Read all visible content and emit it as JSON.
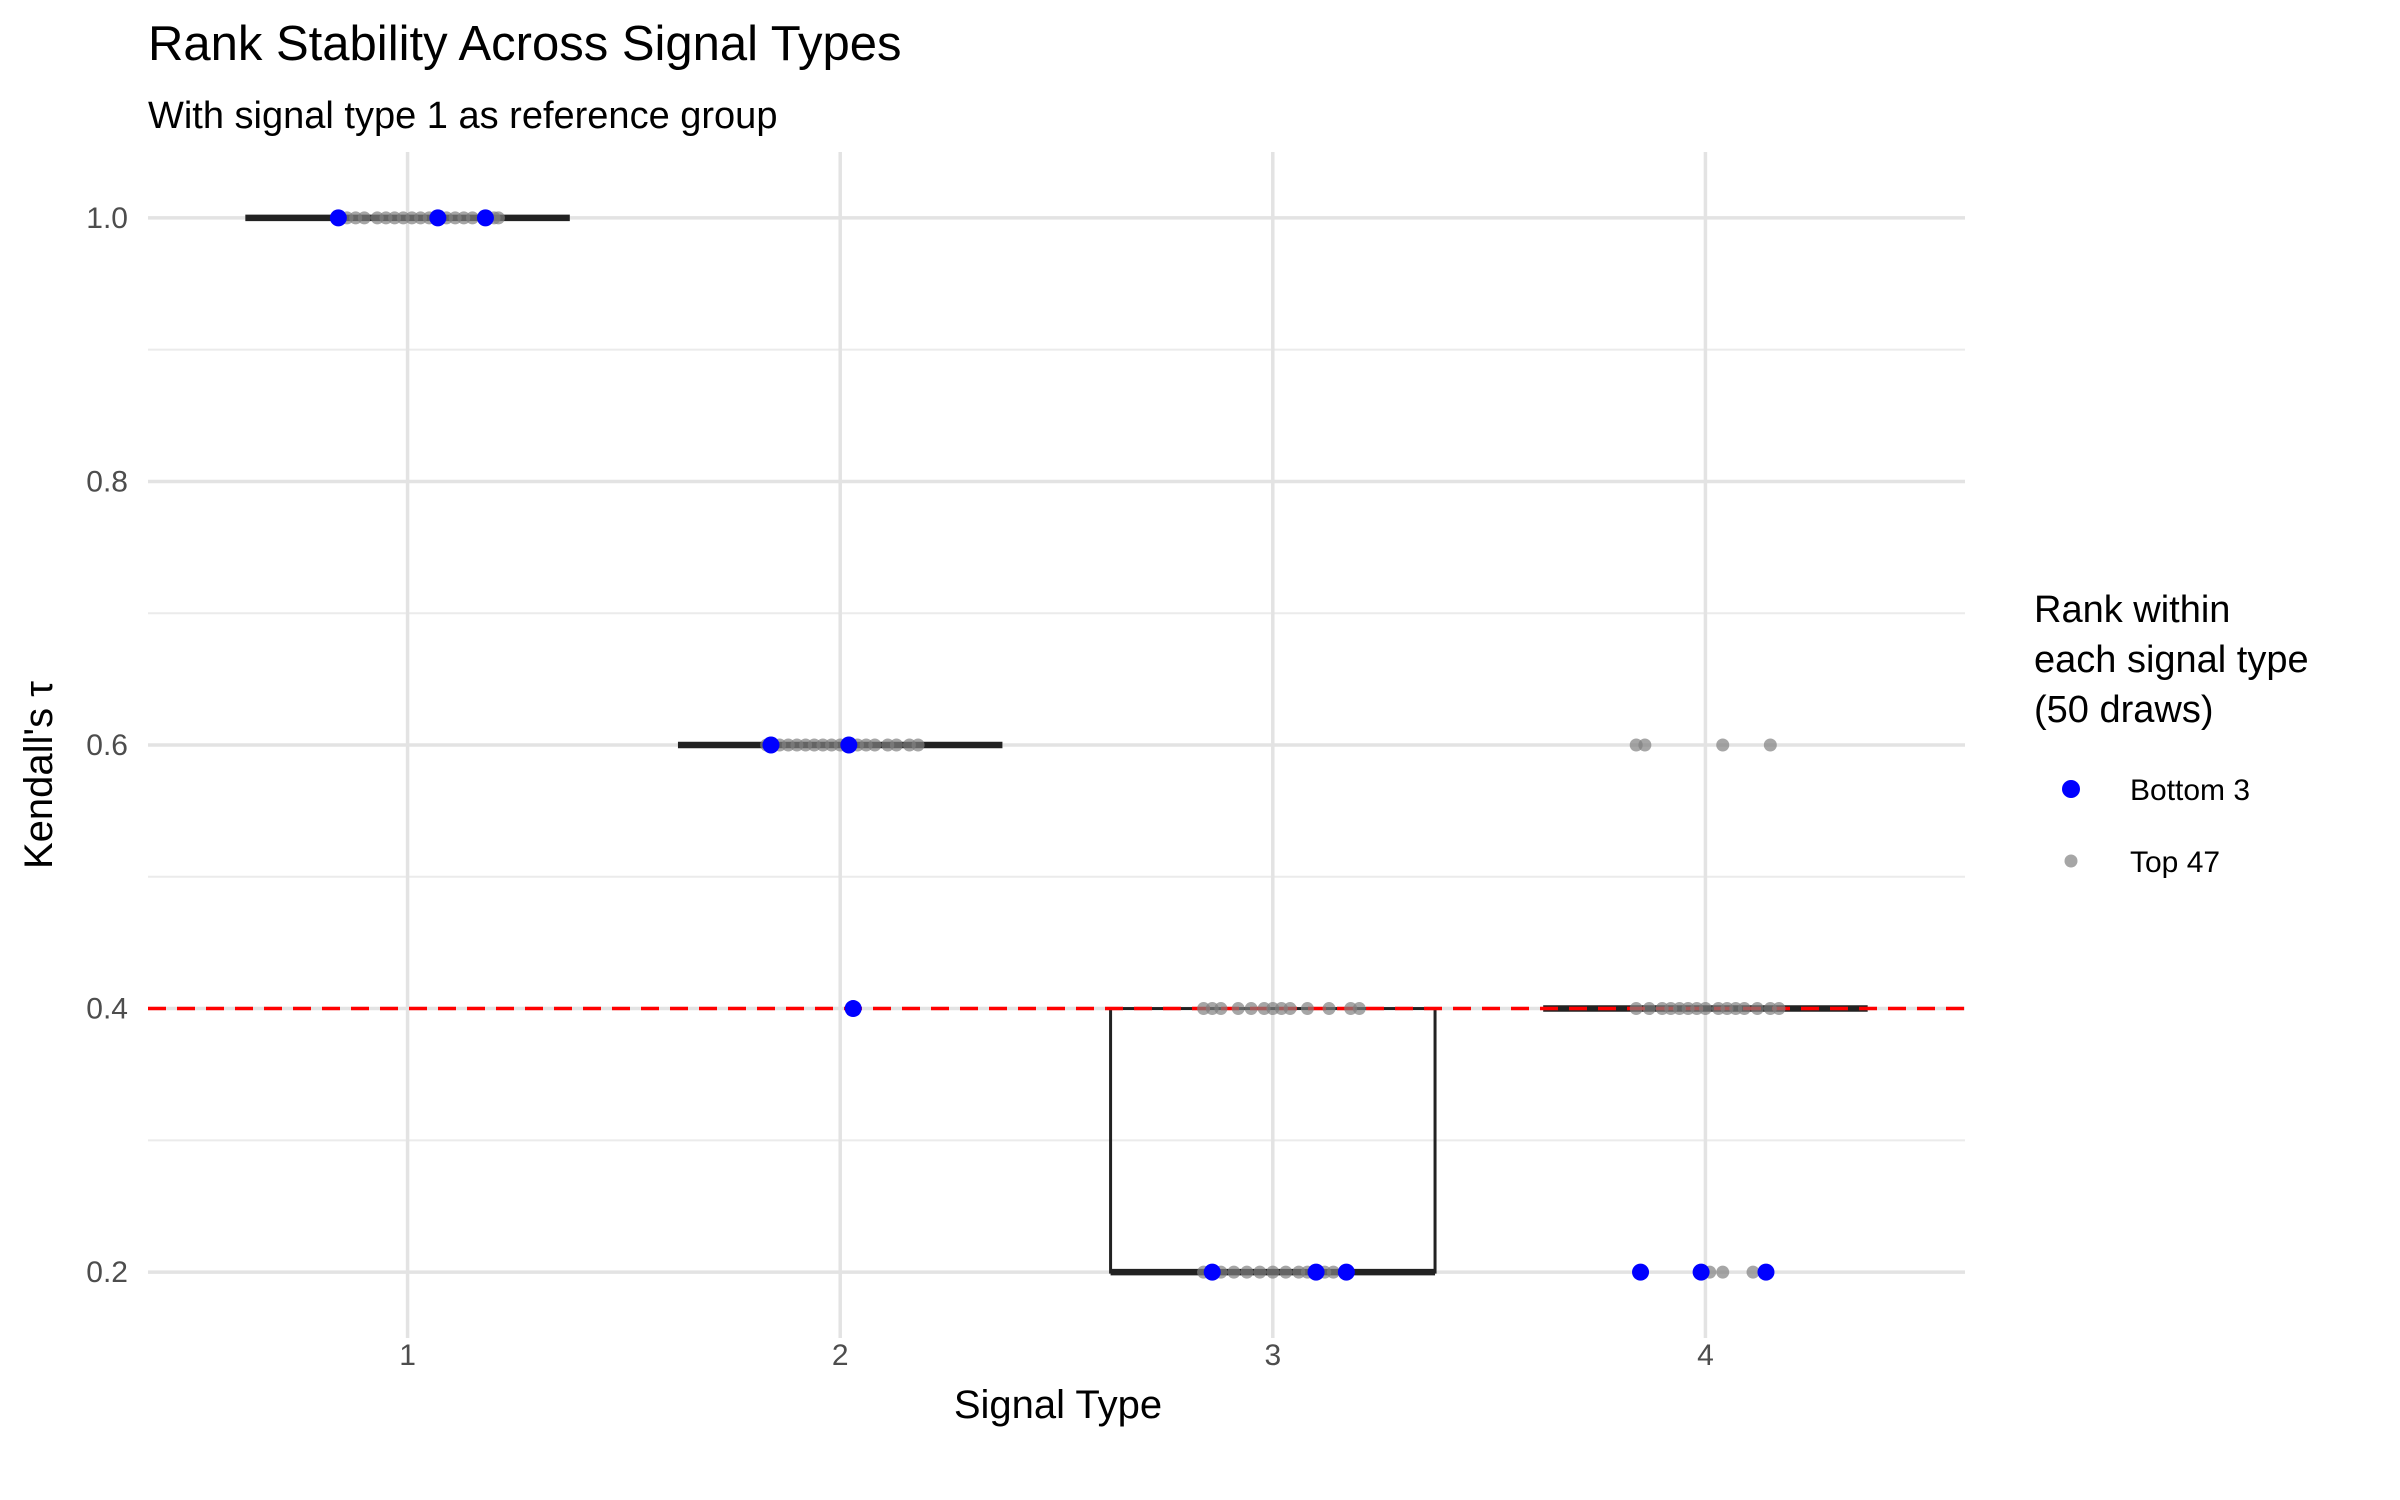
{
  "chart_data": {
    "type": "box",
    "title": "Rank Stability Across Signal Types",
    "subtitle": "With signal type 1 as reference group",
    "xlabel": "Signal Type",
    "ylabel": "Kendall's τ",
    "categories": [
      "1",
      "2",
      "3",
      "4"
    ],
    "y_ticks": [
      "0.2",
      "0.4",
      "0.6",
      "0.8",
      "1.0"
    ],
    "ylim": [
      0.15,
      1.05
    ],
    "grid": true,
    "reference_line": {
      "y": 0.4,
      "color": "#ff0000",
      "style": "dashed"
    },
    "boxes": [
      {
        "category": "1",
        "q1": 1.0,
        "median": 1.0,
        "q3": 1.0
      },
      {
        "category": "2",
        "q1": 0.6,
        "median": 0.6,
        "q3": 0.6
      },
      {
        "category": "3",
        "q1": 0.2,
        "median": 0.2,
        "q3": 0.4
      },
      {
        "category": "4",
        "q1": 0.4,
        "median": 0.4,
        "q3": 0.4
      }
    ],
    "series": [
      {
        "name": "Bottom 3",
        "color": "#0000ff",
        "points": [
          {
            "x": 0.84,
            "y": 1.0
          },
          {
            "x": 1.07,
            "y": 1.0
          },
          {
            "x": 1.18,
            "y": 1.0
          },
          {
            "x": 1.84,
            "y": 0.6
          },
          {
            "x": 2.02,
            "y": 0.6
          },
          {
            "x": 2.03,
            "y": 0.4
          },
          {
            "x": 2.86,
            "y": 0.2
          },
          {
            "x": 3.1,
            "y": 0.2
          },
          {
            "x": 3.17,
            "y": 0.2
          },
          {
            "x": 3.85,
            "y": 0.2
          },
          {
            "x": 3.99,
            "y": 0.2
          },
          {
            "x": 4.14,
            "y": 0.2
          }
        ]
      },
      {
        "name": "Top 47",
        "color": "#808080",
        "opacity": 0.7,
        "points": [
          {
            "x": 0.84,
            "y": 1.0
          },
          {
            "x": 0.86,
            "y": 1.0
          },
          {
            "x": 0.88,
            "y": 1.0
          },
          {
            "x": 0.9,
            "y": 1.0
          },
          {
            "x": 0.93,
            "y": 1.0
          },
          {
            "x": 0.95,
            "y": 1.0
          },
          {
            "x": 0.97,
            "y": 1.0
          },
          {
            "x": 0.99,
            "y": 1.0
          },
          {
            "x": 1.01,
            "y": 1.0
          },
          {
            "x": 1.03,
            "y": 1.0
          },
          {
            "x": 1.05,
            "y": 1.0
          },
          {
            "x": 1.09,
            "y": 1.0
          },
          {
            "x": 1.11,
            "y": 1.0
          },
          {
            "x": 1.13,
            "y": 1.0
          },
          {
            "x": 1.15,
            "y": 1.0
          },
          {
            "x": 1.2,
            "y": 1.0
          },
          {
            "x": 1.21,
            "y": 1.0
          },
          {
            "x": 1.83,
            "y": 0.6
          },
          {
            "x": 1.86,
            "y": 0.6
          },
          {
            "x": 1.88,
            "y": 0.6
          },
          {
            "x": 1.9,
            "y": 0.6
          },
          {
            "x": 1.92,
            "y": 0.6
          },
          {
            "x": 1.94,
            "y": 0.6
          },
          {
            "x": 1.96,
            "y": 0.6
          },
          {
            "x": 1.98,
            "y": 0.6
          },
          {
            "x": 2.0,
            "y": 0.6
          },
          {
            "x": 2.04,
            "y": 0.6
          },
          {
            "x": 2.06,
            "y": 0.6
          },
          {
            "x": 2.08,
            "y": 0.6
          },
          {
            "x": 2.11,
            "y": 0.6
          },
          {
            "x": 2.13,
            "y": 0.6
          },
          {
            "x": 2.16,
            "y": 0.6
          },
          {
            "x": 2.18,
            "y": 0.6
          },
          {
            "x": 2.84,
            "y": 0.4
          },
          {
            "x": 2.86,
            "y": 0.4
          },
          {
            "x": 2.88,
            "y": 0.4
          },
          {
            "x": 2.92,
            "y": 0.4
          },
          {
            "x": 2.95,
            "y": 0.4
          },
          {
            "x": 2.98,
            "y": 0.4
          },
          {
            "x": 3.0,
            "y": 0.4
          },
          {
            "x": 3.02,
            "y": 0.4
          },
          {
            "x": 3.04,
            "y": 0.4
          },
          {
            "x": 3.08,
            "y": 0.4
          },
          {
            "x": 3.13,
            "y": 0.4
          },
          {
            "x": 3.18,
            "y": 0.4
          },
          {
            "x": 3.2,
            "y": 0.4
          },
          {
            "x": 2.84,
            "y": 0.2
          },
          {
            "x": 2.88,
            "y": 0.2
          },
          {
            "x": 2.91,
            "y": 0.2
          },
          {
            "x": 2.94,
            "y": 0.2
          },
          {
            "x": 2.97,
            "y": 0.2
          },
          {
            "x": 3.0,
            "y": 0.2
          },
          {
            "x": 3.03,
            "y": 0.2
          },
          {
            "x": 3.06,
            "y": 0.2
          },
          {
            "x": 3.08,
            "y": 0.2
          },
          {
            "x": 3.12,
            "y": 0.2
          },
          {
            "x": 3.14,
            "y": 0.2
          },
          {
            "x": 3.84,
            "y": 0.6
          },
          {
            "x": 3.86,
            "y": 0.6
          },
          {
            "x": 4.04,
            "y": 0.6
          },
          {
            "x": 4.15,
            "y": 0.6
          },
          {
            "x": 3.84,
            "y": 0.4
          },
          {
            "x": 3.87,
            "y": 0.4
          },
          {
            "x": 3.9,
            "y": 0.4
          },
          {
            "x": 3.92,
            "y": 0.4
          },
          {
            "x": 3.94,
            "y": 0.4
          },
          {
            "x": 3.96,
            "y": 0.4
          },
          {
            "x": 3.98,
            "y": 0.4
          },
          {
            "x": 4.0,
            "y": 0.4
          },
          {
            "x": 4.03,
            "y": 0.4
          },
          {
            "x": 4.05,
            "y": 0.4
          },
          {
            "x": 4.07,
            "y": 0.4
          },
          {
            "x": 4.09,
            "y": 0.4
          },
          {
            "x": 4.12,
            "y": 0.4
          },
          {
            "x": 4.15,
            "y": 0.4
          },
          {
            "x": 4.17,
            "y": 0.4
          },
          {
            "x": 4.01,
            "y": 0.2
          },
          {
            "x": 4.04,
            "y": 0.2
          },
          {
            "x": 4.11,
            "y": 0.2
          }
        ]
      }
    ],
    "legend": {
      "title_lines": [
        "Rank within",
        "each signal type",
        "(50 draws)"
      ],
      "position": "right",
      "entries": [
        "Bottom 3",
        "Top 47"
      ]
    }
  }
}
